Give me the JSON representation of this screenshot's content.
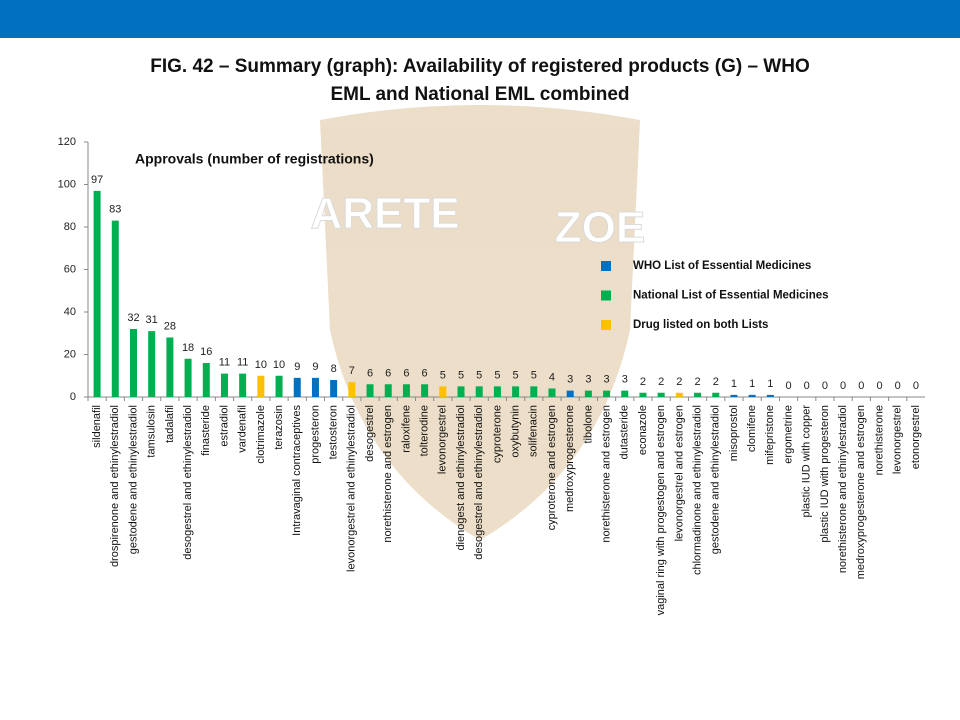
{
  "chart_data": {
    "type": "bar",
    "title": "FIG. 42 – Summary (graph): Availability of registered products (G) – WHO",
    "title_line2": "EML and National EML combined",
    "subtitle": "Approvals (number of registrations)",
    "watermark": [
      "ARETE",
      "ZOE"
    ],
    "categories": [
      "sildenafil",
      "drospirenone and ethinylestradiol",
      "gestodene and ethinylestradiol",
      "tamsulosin",
      "tadalafil",
      "desogestrel and ethinylestradiol",
      "finasteride",
      "estradiol",
      "vardenafil",
      "clotrimazole",
      "terazosin",
      "Intravaginal contraceptives",
      "progesteron",
      "testosteron",
      "levonorgestrel and ethinylestradiol",
      "desogestrel",
      "norethisterone and estrogen",
      "raloxifene",
      "tolterodine",
      "levonorgestrel",
      "dienogest and ethinylestradiol",
      "desogestrel and ethinylestradiol",
      "cyproterone",
      "oxybutynin",
      "solifenacin",
      "cyproterone and estrogen",
      "medroxyprogesterone",
      "tibolone",
      "norethisterone and estrogen",
      "dutasteride",
      "econazole",
      "vaginal ring with progestogen and estrogen",
      "levonorgestrel and estrogen",
      "chlormadinone and ethinylestradiol",
      "gestodene and ethinylestradiol",
      "misoprostol",
      "clomifene",
      "mifepristone",
      "ergometrine",
      "plastic IUD with copper",
      "plastic IUD with progesteron",
      "norethisterone and ethinylestradiol",
      "medroxyprogesterone and estrogen",
      "norethisterone",
      "levonorgestrel",
      "etonorgestrel"
    ],
    "values": [
      97,
      83,
      32,
      31,
      28,
      18,
      16,
      11,
      11,
      10,
      10,
      9,
      9,
      8,
      7,
      6,
      6,
      6,
      6,
      5,
      5,
      5,
      5,
      5,
      5,
      4,
      3,
      3,
      3,
      3,
      2,
      2,
      2,
      2,
      2,
      1,
      1,
      1,
      0,
      0,
      0,
      0,
      0,
      0,
      0,
      0
    ],
    "colors": [
      "#00b050",
      "#00b050",
      "#00b050",
      "#00b050",
      "#00b050",
      "#00b050",
      "#00b050",
      "#00b050",
      "#00b050",
      "#ffc000",
      "#00b050",
      "#0070c0",
      "#0070c0",
      "#0070c0",
      "#ffc000",
      "#00b050",
      "#00b050",
      "#00b050",
      "#00b050",
      "#ffc000",
      "#00b050",
      "#00b050",
      "#00b050",
      "#00b050",
      "#00b050",
      "#00b050",
      "#0070c0",
      "#00b050",
      "#00b050",
      "#00b050",
      "#00b050",
      "#00b050",
      "#ffc000",
      "#00b050",
      "#00b050",
      "#0070c0",
      "#0070c0",
      "#0070c0",
      "#00b050",
      "#00b050",
      "#00b050",
      "#00b050",
      "#00b050",
      "#00b050",
      "#00b050",
      "#00b050"
    ],
    "legend": [
      {
        "name": "WHO List of Essential Medicines",
        "color": "#0070c0"
      },
      {
        "name": "National List of Essential Medicines",
        "color": "#00b050"
      },
      {
        "name": "Drug listed on both Lists",
        "color": "#ffc000"
      }
    ],
    "ylim": [
      0,
      120
    ],
    "yticks": [
      0,
      20,
      40,
      60,
      80,
      100,
      120
    ],
    "grid": false
  }
}
